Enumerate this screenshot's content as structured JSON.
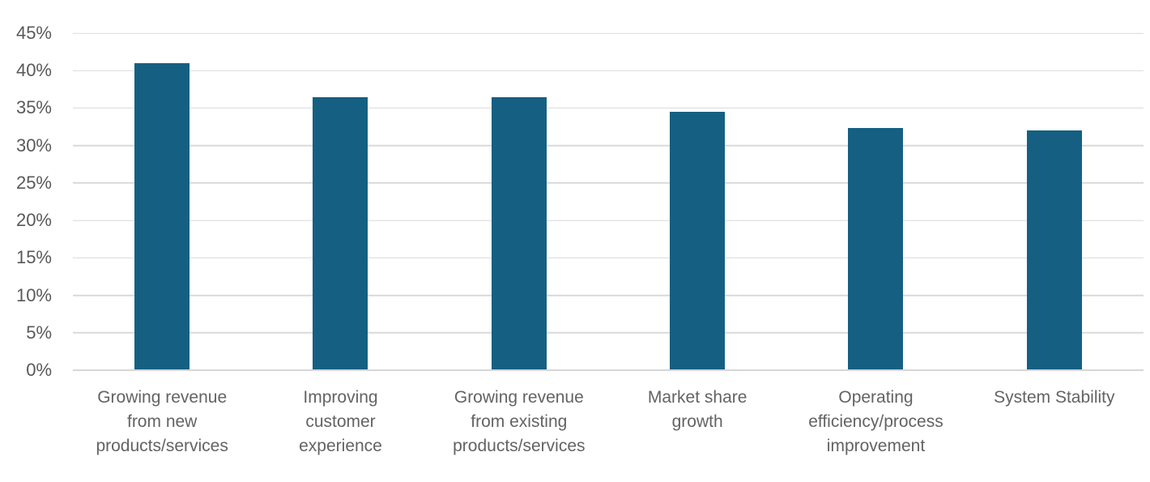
{
  "chart_data": {
    "type": "bar",
    "title": "",
    "xlabel": "",
    "ylabel": "",
    "categories": [
      "Growing revenue from new products/services",
      "Improving customer experience",
      "Growing revenue from existing products/services",
      "Market share growth",
      "Operating efficiency/process improvement",
      "System Stability"
    ],
    "category_lines": [
      [
        "Growing revenue",
        "from new",
        "products/services"
      ],
      [
        "Improving",
        "customer",
        "experience"
      ],
      [
        "Growing revenue",
        "from existing",
        "products/services"
      ],
      [
        "Market share",
        "growth"
      ],
      [
        "Operating",
        "efficiency/process",
        "improvement"
      ],
      [
        "System Stability"
      ]
    ],
    "values": [
      41,
      36.5,
      36.5,
      34.5,
      32.3,
      32
    ],
    "value_unit": "percent",
    "ylim": [
      0,
      45
    ],
    "ytick_step": 5,
    "ytick_labels": [
      "0%",
      "5%",
      "10%",
      "15%",
      "20%",
      "25%",
      "30%",
      "35%",
      "40%",
      "45%"
    ],
    "grid": "horizontal",
    "legend": "none",
    "colors": {
      "bar": "#156082",
      "gridline": "#D9D9D9",
      "axis_line": "#D6D6D6",
      "tick_text": "#595959",
      "category_text": "#636363",
      "background": "#FFFFFF"
    }
  }
}
